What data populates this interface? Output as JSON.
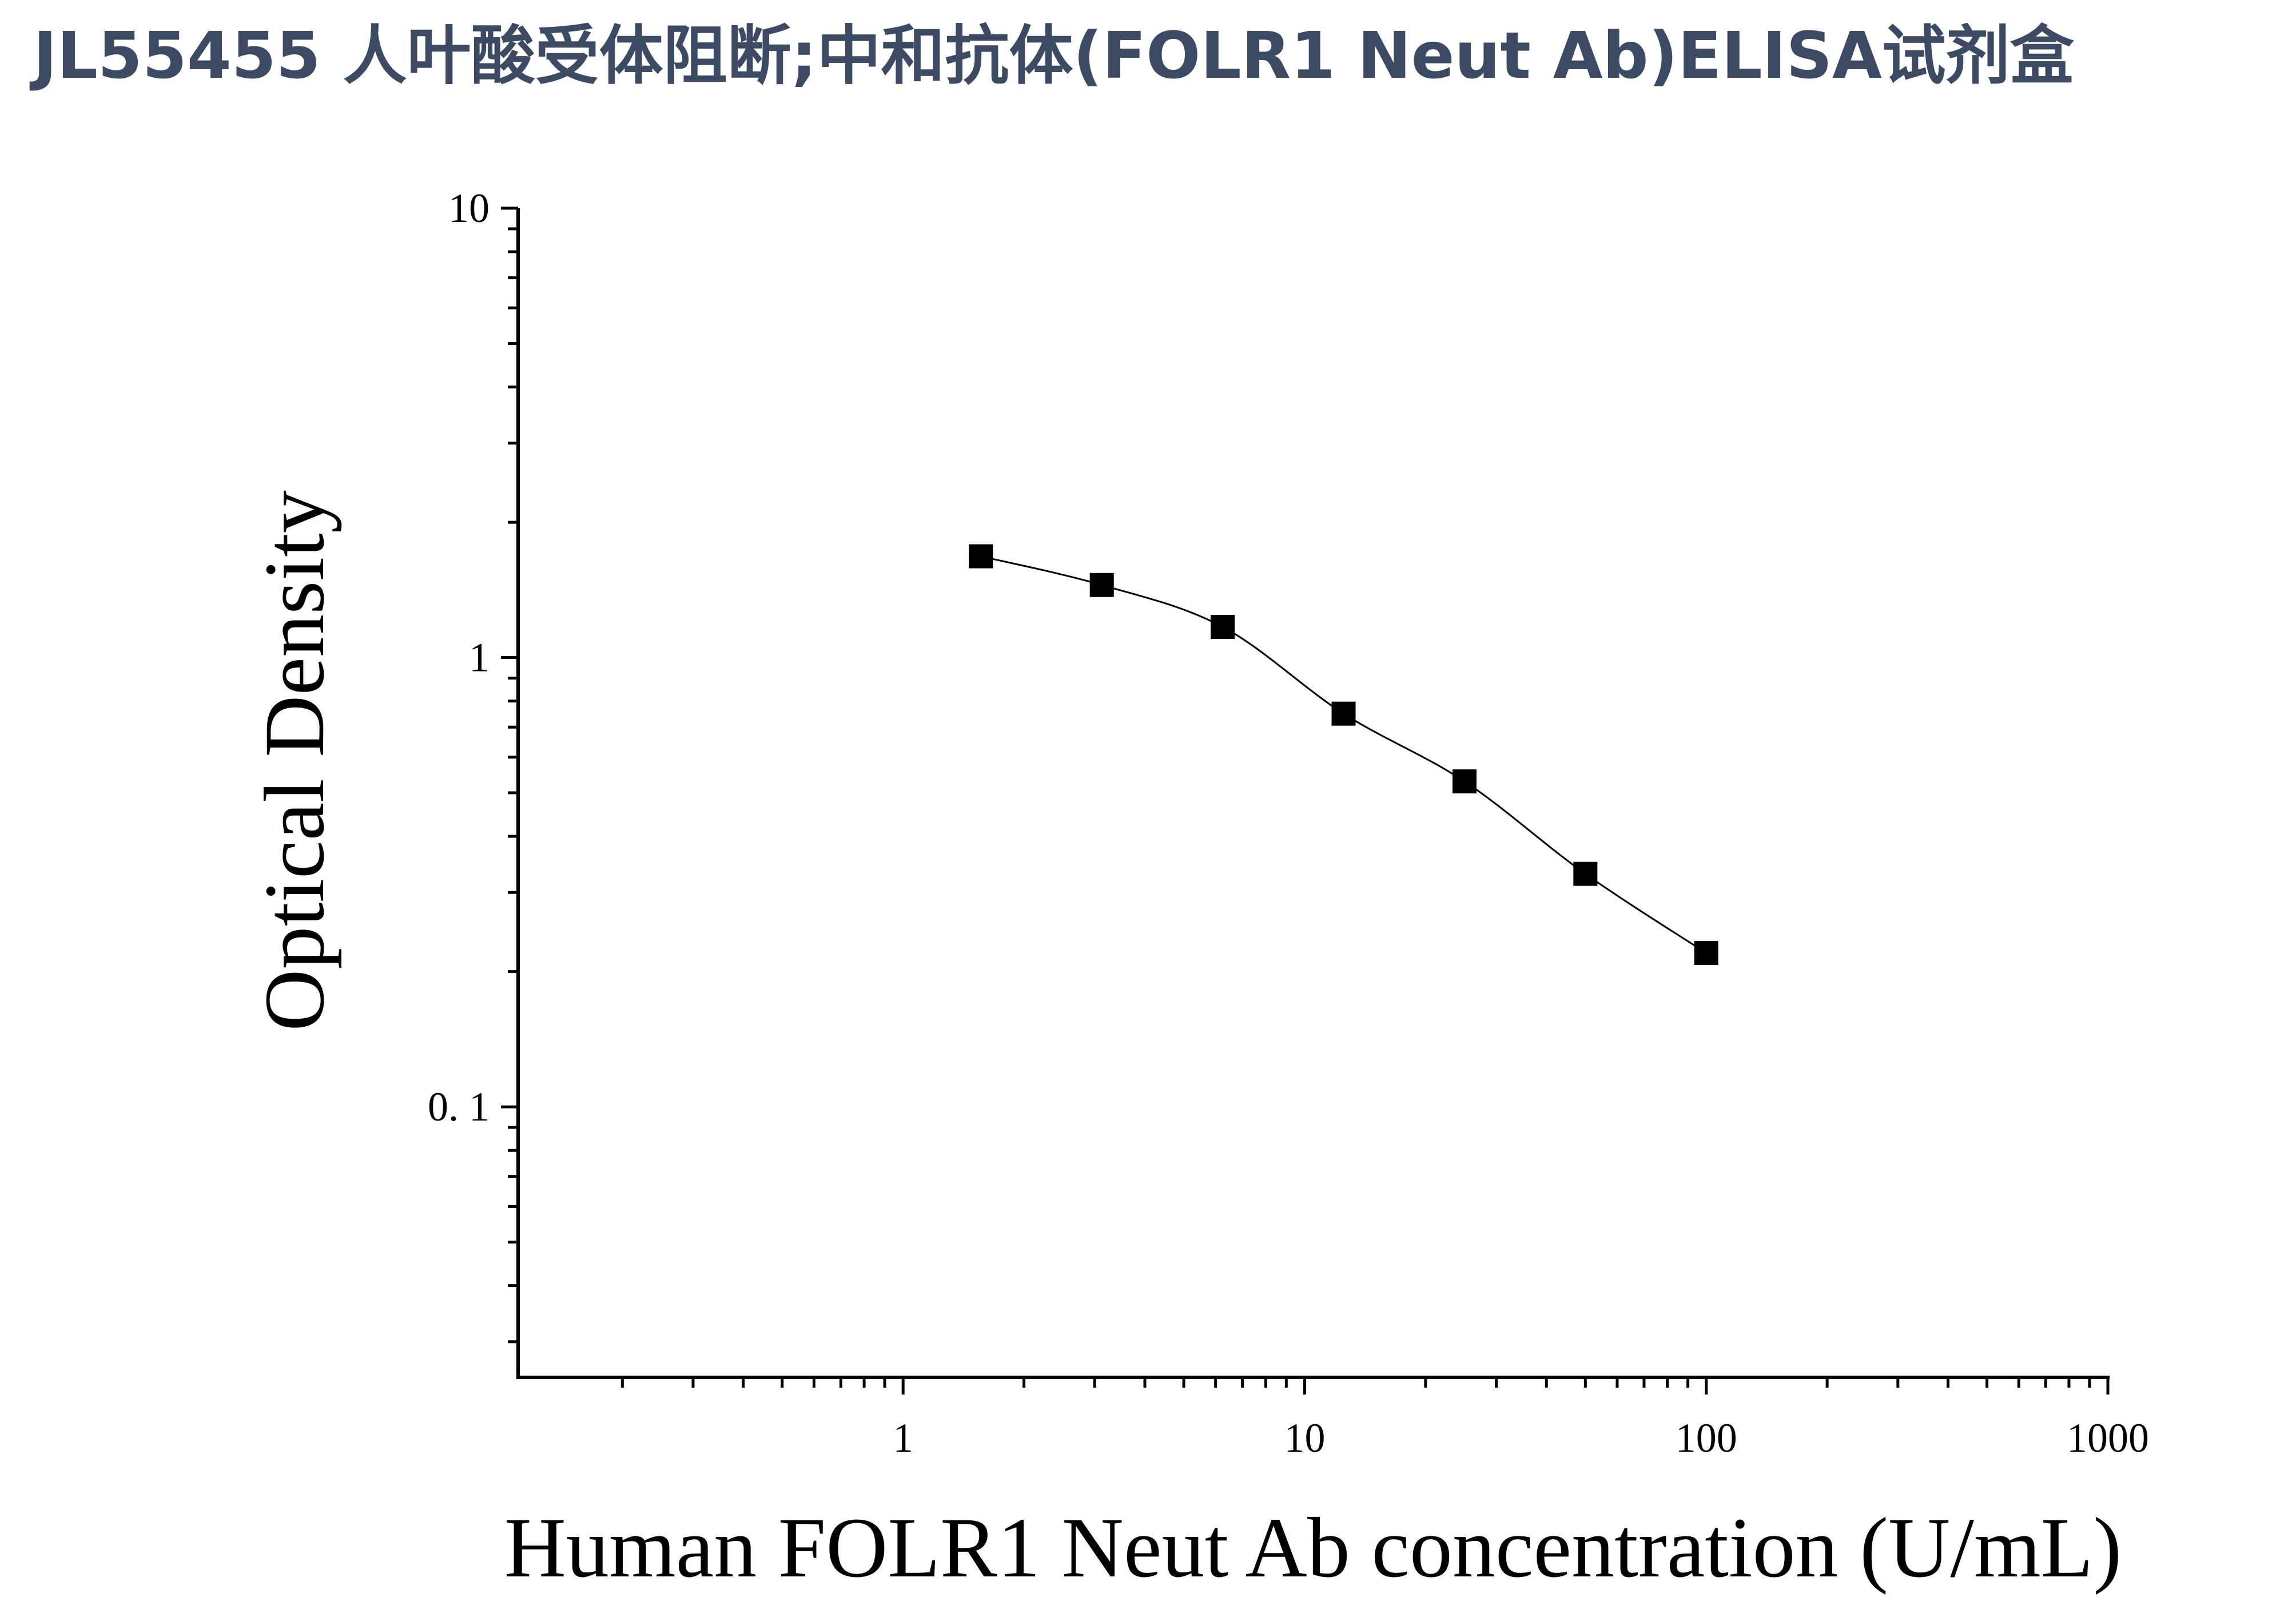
{
  "page": {
    "title": "JL55455 人叶酸受体阻断;中和抗体(FOLR1 Neut Ab)ELISA试剂盒"
  },
  "chart_data": {
    "type": "scatter",
    "title": "",
    "xlabel": "Human FOLR1 Neut Ab concentration (U/mL)",
    "ylabel": "Optical Density",
    "x_scale": "log",
    "y_scale": "log",
    "xlim": [
      0.11,
      1000
    ],
    "ylim": [
      0.025,
      10
    ],
    "x_tick_values": [
      1,
      10,
      100,
      1000
    ],
    "x_tick_labels": [
      "1",
      "10",
      "100",
      "1000"
    ],
    "y_tick_values": [
      0.1,
      1,
      10
    ],
    "y_tick_labels": [
      "0. 1",
      "1",
      "10"
    ],
    "grid": false,
    "legend": "none",
    "series": [
      {
        "marker": "square",
        "fit": "4PL curve",
        "color": "#000000",
        "x": [
          1.5625,
          3.125,
          6.25,
          12.5,
          25,
          50,
          100
        ],
        "y": [
          1.68,
          1.45,
          1.17,
          0.75,
          0.53,
          0.33,
          0.22
        ]
      }
    ]
  }
}
